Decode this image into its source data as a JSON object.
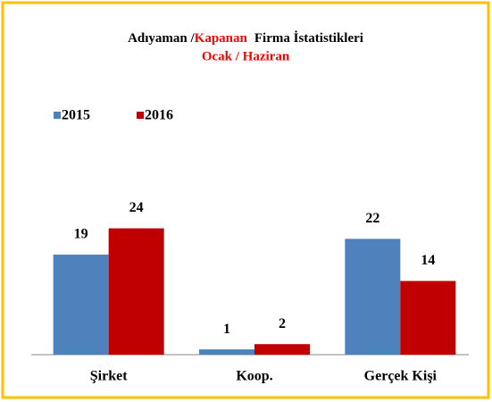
{
  "chart_data": {
    "type": "bar",
    "title": [
      "Adıyaman /",
      "Kapanan",
      "Firma İstatistikleri"
    ],
    "title_colors": [
      "#000000",
      "#ff0000",
      "#000000"
    ],
    "subtitle": "Ocak / Haziran",
    "subtitle_color": "#ff0000",
    "categories": [
      "Şirket",
      "Koop.",
      "Gerçek Kişi"
    ],
    "series": [
      {
        "name": "2015",
        "color": "#4f81bd",
        "values": [
          19,
          1,
          22
        ]
      },
      {
        "name": "2016",
        "color": "#c00000",
        "values": [
          24,
          2,
          14
        ]
      }
    ],
    "ylim": [
      0,
      28
    ],
    "legend": "top-left"
  }
}
